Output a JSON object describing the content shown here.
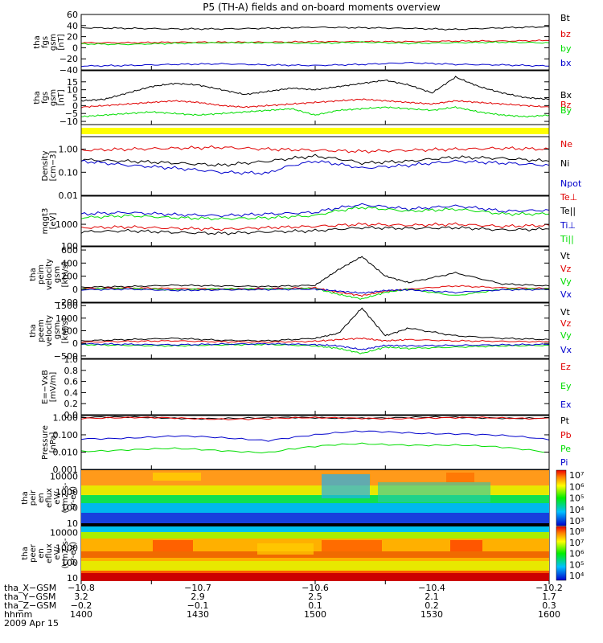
{
  "title": "P5 (TH-A) fields and on-board moments overview",
  "colors": {
    "black": "#000000",
    "red": "#e00000",
    "green": "#00dd00",
    "blue": "#0000cc",
    "yellow": "#ffff00"
  },
  "chart_data": [
    {
      "type": "line",
      "id": "fgs_gsm_big",
      "ylabel": [
        "tha",
        "fgs",
        "gsm",
        "[nT]"
      ],
      "ylim": [
        -40,
        60
      ],
      "yticks": [
        "60",
        "40",
        "20",
        "0",
        "−20",
        "−40"
      ],
      "series": [
        {
          "name": "Bt",
          "color": "#000000",
          "x": [
            1400,
            1420,
            1440,
            1460,
            1480,
            1500,
            1520,
            1540,
            1560,
            1580,
            1600
          ],
          "values": [
            36,
            35,
            34,
            34,
            35,
            37,
            36,
            35,
            33,
            36,
            38
          ]
        },
        {
          "name": "bz",
          "color": "#e00000",
          "x": [
            1400,
            1420,
            1440,
            1460,
            1480,
            1500,
            1520,
            1540,
            1560,
            1580,
            1600
          ],
          "values": [
            9,
            9,
            10,
            10,
            10,
            11,
            11,
            11,
            12,
            12,
            13
          ]
        },
        {
          "name": "by",
          "color": "#00dd00",
          "x": [
            1400,
            1420,
            1440,
            1460,
            1480,
            1500,
            1520,
            1540,
            1560,
            1580,
            1600
          ],
          "values": [
            7,
            6,
            8,
            9,
            9,
            8,
            10,
            8,
            9,
            10,
            9
          ]
        },
        {
          "name": "bx",
          "color": "#0000cc",
          "x": [
            1400,
            1420,
            1440,
            1460,
            1480,
            1500,
            1520,
            1540,
            1560,
            1580,
            1600
          ],
          "values": [
            -33,
            -32,
            -30,
            -29,
            -31,
            -32,
            -30,
            -27,
            -30,
            -31,
            -33
          ]
        }
      ]
    },
    {
      "type": "line",
      "id": "fgs_gsm_detrended",
      "ylabel": [
        "tha",
        "fgs",
        "gsm",
        "[nT]"
      ],
      "ylim": [
        -12,
        22
      ],
      "yticks": [
        "15",
        "10",
        "5",
        "0",
        "−5",
        "−10"
      ],
      "series": [
        {
          "name": "Bx",
          "color": "#000000",
          "x": [
            1400,
            1410,
            1420,
            1430,
            1440,
            1450,
            1460,
            1470,
            1480,
            1490,
            1500,
            1510,
            1520,
            1530,
            1540,
            1550,
            1560,
            1570,
            1580,
            1590,
            1600
          ],
          "values": [
            3,
            4,
            8,
            12,
            14,
            13,
            10,
            7,
            9,
            11,
            10,
            12,
            14,
            16,
            13,
            8,
            18,
            12,
            8,
            5,
            4
          ]
        },
        {
          "name": "Bz",
          "color": "#e00000",
          "x": [
            1400,
            1410,
            1420,
            1430,
            1440,
            1450,
            1460,
            1470,
            1480,
            1490,
            1500,
            1510,
            1520,
            1530,
            1540,
            1550,
            1560,
            1570,
            1580,
            1590,
            1600
          ],
          "values": [
            -1,
            0,
            1,
            2,
            3,
            2,
            0,
            -1,
            0,
            1,
            2,
            3,
            4,
            3,
            2,
            1,
            3,
            2,
            1,
            0,
            -1
          ]
        },
        {
          "name": "By",
          "color": "#00dd00",
          "x": [
            1400,
            1410,
            1420,
            1430,
            1440,
            1450,
            1460,
            1470,
            1480,
            1490,
            1500,
            1510,
            1520,
            1530,
            1540,
            1550,
            1560,
            1570,
            1580,
            1590,
            1600
          ],
          "values": [
            -7,
            -6,
            -5,
            -4,
            -5,
            -6,
            -5,
            -4,
            -3,
            -2,
            -6,
            -3,
            -2,
            -1,
            -2,
            -3,
            -1,
            -4,
            -6,
            -7,
            -6
          ]
        }
      ]
    },
    {
      "type": "line",
      "id": "density",
      "ylabel": [
        "Density",
        "[cm−3]"
      ],
      "scale": "log",
      "ylim": [
        0.01,
        3.5
      ],
      "yticks": [
        "1.00",
        "0.10",
        "0.01"
      ],
      "series": [
        {
          "name": "Ne",
          "color": "#e00000",
          "x": [
            1400,
            1420,
            1440,
            1460,
            1480,
            1500,
            1520,
            1540,
            1560,
            1580,
            1600
          ],
          "values": [
            0.9,
            1.0,
            1.1,
            1.2,
            1.0,
            0.9,
            0.8,
            0.9,
            1.0,
            1.1,
            1.0
          ]
        },
        {
          "name": "Ni",
          "color": "#000000",
          "x": [
            1400,
            1420,
            1440,
            1460,
            1480,
            1500,
            1520,
            1540,
            1560,
            1580,
            1600
          ],
          "values": [
            0.35,
            0.3,
            0.25,
            0.2,
            0.3,
            0.5,
            0.25,
            0.3,
            0.45,
            0.4,
            0.3
          ]
        },
        {
          "name": "Npot",
          "color": "#0000cc",
          "x": [
            1400,
            1420,
            1440,
            1460,
            1480,
            1500,
            1520,
            1540,
            1560,
            1580,
            1600
          ],
          "values": [
            0.3,
            0.2,
            0.15,
            0.1,
            0.09,
            0.3,
            0.15,
            0.2,
            0.3,
            0.25,
            0.2
          ]
        }
      ]
    },
    {
      "type": "line",
      "id": "temperature",
      "ylabel": [
        "mqgt3",
        "[eV]"
      ],
      "scale": "log",
      "ylim": [
        100,
        20000
      ],
      "yticks": [
        "1000",
        "100"
      ],
      "series": [
        {
          "name": "Te⊥",
          "color": "#e00000",
          "x": [
            1400,
            1420,
            1440,
            1460,
            1480,
            1500,
            1520,
            1540,
            1560,
            1580,
            1600
          ],
          "values": [
            700,
            750,
            650,
            600,
            700,
            800,
            1000,
            900,
            1000,
            800,
            900
          ]
        },
        {
          "name": "Te||",
          "color": "#000000",
          "x": [
            1400,
            1420,
            1440,
            1460,
            1480,
            1500,
            1520,
            1540,
            1560,
            1580,
            1600
          ],
          "values": [
            450,
            500,
            420,
            380,
            450,
            500,
            700,
            650,
            700,
            550,
            600
          ]
        },
        {
          "name": "Ti⊥",
          "color": "#0000cc",
          "x": [
            1400,
            1420,
            1440,
            1460,
            1480,
            1500,
            1520,
            1540,
            1560,
            1580,
            1600
          ],
          "values": [
            3000,
            3500,
            2800,
            2500,
            3000,
            3500,
            8000,
            5000,
            7000,
            4000,
            4500
          ]
        },
        {
          "name": "Ti||",
          "color": "#00dd00",
          "x": [
            1400,
            1420,
            1440,
            1460,
            1480,
            1500,
            1520,
            1540,
            1560,
            1580,
            1600
          ],
          "values": [
            2000,
            2500,
            2000,
            1800,
            2000,
            2500,
            6000,
            4000,
            5000,
            3000,
            3000
          ]
        }
      ]
    },
    {
      "type": "line",
      "id": "peim_velocity",
      "ylabel": [
        "tha",
        "peim",
        "velocity",
        "gsm",
        "[km/s]"
      ],
      "ylim": [
        -200,
        650
      ],
      "yticks": [
        "600",
        "400",
        "200",
        "0",
        "−200"
      ],
      "series": [
        {
          "name": "Vt",
          "color": "#000000",
          "x": [
            1400,
            1420,
            1440,
            1460,
            1480,
            1500,
            1510,
            1520,
            1530,
            1540,
            1560,
            1580,
            1600
          ],
          "values": [
            30,
            40,
            60,
            50,
            40,
            60,
            300,
            500,
            200,
            100,
            250,
            80,
            50
          ]
        },
        {
          "name": "Vz",
          "color": "#e00000",
          "x": [
            1400,
            1420,
            1440,
            1460,
            1480,
            1500,
            1510,
            1520,
            1530,
            1540,
            1560,
            1580,
            1600
          ],
          "values": [
            10,
            20,
            10,
            0,
            10,
            20,
            -50,
            -100,
            -30,
            0,
            50,
            20,
            10
          ]
        },
        {
          "name": "Vy",
          "color": "#00dd00",
          "x": [
            1400,
            1420,
            1440,
            1460,
            1480,
            1500,
            1510,
            1520,
            1530,
            1540,
            1560,
            1580,
            1600
          ],
          "values": [
            0,
            10,
            -10,
            5,
            0,
            10,
            -80,
            -150,
            -50,
            0,
            -100,
            0,
            5
          ]
        },
        {
          "name": "Vx",
          "color": "#0000cc",
          "x": [
            1400,
            1420,
            1440,
            1460,
            1480,
            1500,
            1510,
            1520,
            1530,
            1540,
            1560,
            1580,
            1600
          ],
          "values": [
            -10,
            0,
            -20,
            -10,
            -5,
            0,
            -30,
            -60,
            -20,
            -10,
            -50,
            -10,
            -5
          ]
        }
      ]
    },
    {
      "type": "line",
      "id": "peem_velocity",
      "ylabel": [
        "tha",
        "peem",
        "velocity",
        "gsm",
        "[km/s]"
      ],
      "ylim": [
        -600,
        1600
      ],
      "yticks": [
        "1500",
        "1000",
        "500",
        "0",
        "−500"
      ],
      "series": [
        {
          "name": "Vt",
          "color": "#000000",
          "x": [
            1400,
            1420,
            1440,
            1460,
            1480,
            1500,
            1510,
            1520,
            1530,
            1540,
            1560,
            1580,
            1600
          ],
          "values": [
            100,
            150,
            200,
            120,
            100,
            200,
            400,
            1400,
            300,
            600,
            300,
            200,
            150
          ]
        },
        {
          "name": "Vz",
          "color": "#e00000",
          "x": [
            1400,
            1420,
            1440,
            1460,
            1480,
            1500,
            1510,
            1520,
            1530,
            1540,
            1560,
            1580,
            1600
          ],
          "values": [
            50,
            80,
            100,
            60,
            50,
            80,
            150,
            200,
            100,
            150,
            100,
            80,
            60
          ]
        },
        {
          "name": "Vy",
          "color": "#00dd00",
          "x": [
            1400,
            1420,
            1440,
            1460,
            1480,
            1500,
            1510,
            1520,
            1530,
            1540,
            1560,
            1580,
            1600
          ],
          "values": [
            -50,
            -80,
            -100,
            -60,
            -40,
            -100,
            -200,
            -400,
            -150,
            -200,
            -150,
            -100,
            -80
          ]
        },
        {
          "name": "Vx",
          "color": "#0000cc",
          "x": [
            1400,
            1420,
            1440,
            1460,
            1480,
            1500,
            1510,
            1520,
            1530,
            1540,
            1560,
            1580,
            1600
          ],
          "values": [
            -20,
            -40,
            -60,
            -30,
            -20,
            -50,
            -100,
            -250,
            -80,
            -100,
            -80,
            -60,
            -40
          ]
        }
      ]
    },
    {
      "type": "line",
      "id": "efield",
      "ylabel": [
        "E=−VxB",
        "[mV/m]"
      ],
      "ylim": [
        0.0,
        1.0
      ],
      "yticks": [
        "1.0",
        "0.8",
        "0.6",
        "0.4",
        "0.2",
        "0.0"
      ],
      "series": [
        {
          "name": "Ez",
          "color": "#e00000",
          "x": [],
          "values": []
        },
        {
          "name": "Ey",
          "color": "#00dd00",
          "x": [],
          "values": []
        },
        {
          "name": "Ex",
          "color": "#0000cc",
          "x": [],
          "values": []
        }
      ]
    },
    {
      "type": "line",
      "id": "pressure",
      "ylabel": [
        "Pressure",
        "[nPa]"
      ],
      "scale": "log",
      "ylim": [
        0.001,
        1.3
      ],
      "yticks": [
        "1.000",
        "0.100",
        "0.010",
        "0.001"
      ],
      "series": [
        {
          "name": "Pt",
          "color": "#000000",
          "x": [
            1400,
            1440,
            1480,
            1520,
            1560,
            1600
          ],
          "values": [
            1.0,
            0.95,
            0.9,
            1.0,
            0.95,
            1.0
          ]
        },
        {
          "name": "Pb",
          "color": "#e00000",
          "x": [
            1400,
            1440,
            1480,
            1520,
            1560,
            1600
          ],
          "values": [
            0.95,
            0.9,
            0.85,
            0.95,
            0.9,
            0.95
          ]
        },
        {
          "name": "Pe",
          "color": "#00dd00",
          "x": [
            1400,
            1440,
            1480,
            1520,
            1560,
            1600
          ],
          "values": [
            0.012,
            0.015,
            0.01,
            0.03,
            0.025,
            0.01
          ]
        },
        {
          "name": "Pi",
          "color": "#0000cc",
          "x": [
            1400,
            1440,
            1480,
            1520,
            1560,
            1600
          ],
          "values": [
            0.06,
            0.08,
            0.05,
            0.15,
            0.12,
            0.05
          ]
        }
      ]
    },
    {
      "type": "heatmap",
      "id": "peir_spectrogram",
      "ylabel": [
        "tha",
        "peir",
        "en",
        "eflux",
        "eV/",
        "(cm2-s-",
        "sr-eV)"
      ],
      "scale": "log",
      "ylim": [
        7,
        25000
      ],
      "yticks": [
        "10000",
        "1000",
        "100",
        "10"
      ],
      "colorbar_ticks": [
        "10⁷",
        "10⁶",
        "10⁵",
        "10⁴",
        "10³"
      ]
    },
    {
      "type": "heatmap",
      "id": "peer_spectrogram",
      "ylabel": [
        "tha",
        "peer",
        "en",
        "eflux",
        "eV/",
        "(cm2-s-",
        "sr-eV)"
      ],
      "scale": "log",
      "ylim": [
        7,
        25000
      ],
      "yticks": [
        "10000",
        "1000",
        "100",
        "10"
      ],
      "colorbar_ticks": [
        "10⁸",
        "10⁷",
        "10⁶",
        "10⁵",
        "10⁴"
      ]
    }
  ],
  "xaxis": {
    "rows": [
      {
        "label": "tha_X−GSM",
        "values": [
          "−10.8",
          "−10.7",
          "−10.6",
          "−10.4",
          "−10.2"
        ]
      },
      {
        "label": "tha_Y−GSM",
        "values": [
          "3.2",
          "2.9",
          "2.5",
          "2.1",
          "1.7"
        ]
      },
      {
        "label": "tha_Z−GSM",
        "values": [
          "−0.2",
          "−0.1",
          "0.1",
          "0.2",
          "0.3"
        ]
      },
      {
        "label": "hhmm",
        "values": [
          "1400",
          "1430",
          "1500",
          "1530",
          "1600"
        ]
      }
    ],
    "date": "2009 Apr 15",
    "time_range": [
      1400,
      1600
    ]
  }
}
